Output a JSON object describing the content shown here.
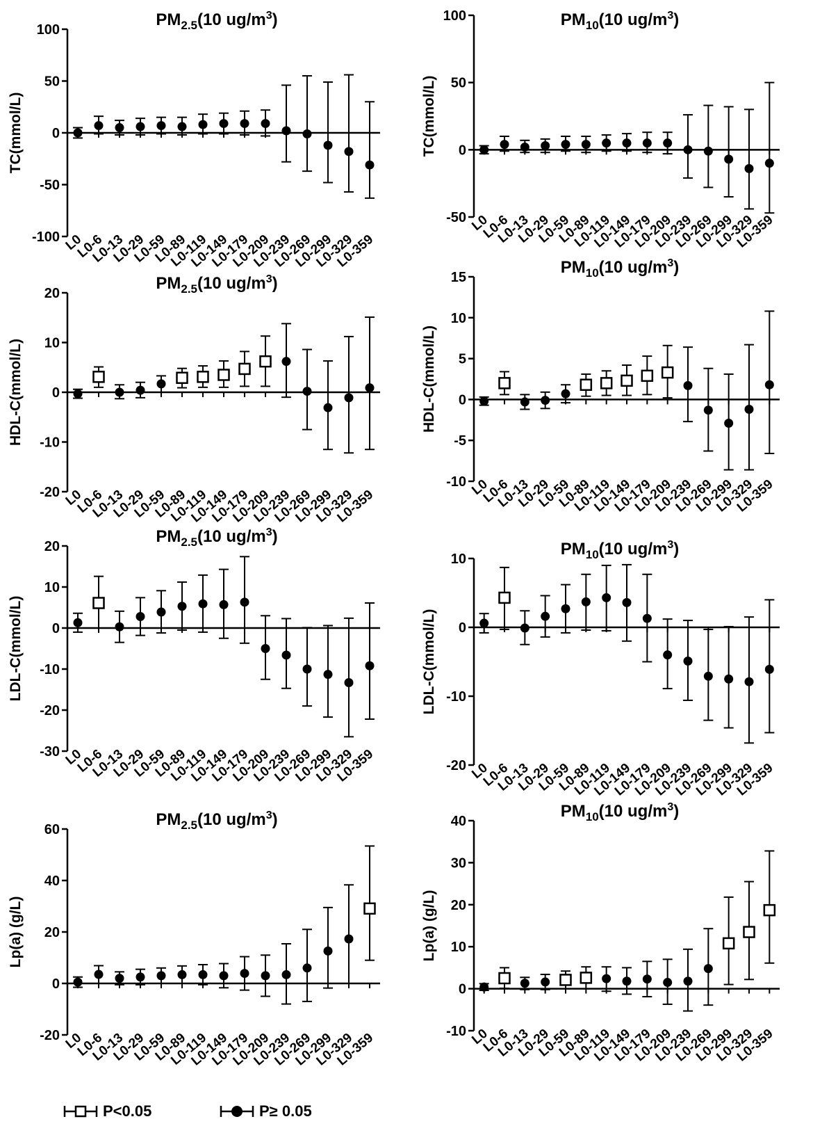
{
  "chart_data": [
    {
      "type": "errorbar",
      "title": {
        "base": "PM",
        "sub": "2.5",
        "tail": "(10 ug/m",
        "sup": "3",
        "end": ")"
      },
      "ylabel": "TC(mmol/L)",
      "ylim": [
        -100,
        100
      ],
      "yticks": [
        -100,
        -50,
        0,
        50,
        100
      ],
      "categories": [
        "L0",
        "L0-6",
        "L0-13",
        "L0-29",
        "L0-59",
        "L0-89",
        "L0-119",
        "L0-149",
        "L0-179",
        "L0-209",
        "L0-239",
        "L0-269",
        "L0-299",
        "L0-329",
        "L0-359"
      ],
      "estimate": [
        0,
        7,
        5,
        6,
        7,
        6,
        8,
        9,
        9,
        9,
        2,
        -1,
        -12,
        -18,
        -31
      ],
      "lower": [
        -5,
        -1,
        -2,
        -2,
        -1,
        -2,
        -1,
        -1,
        -2,
        -3,
        -28,
        -37,
        -48,
        -57,
        -63
      ],
      "upper": [
        5,
        16,
        12,
        14,
        15,
        15,
        18,
        19,
        21,
        22,
        46,
        55,
        49,
        56,
        30
      ],
      "significant": [
        false,
        false,
        false,
        false,
        false,
        false,
        false,
        false,
        false,
        false,
        false,
        false,
        false,
        false,
        false
      ]
    },
    {
      "type": "errorbar",
      "title": {
        "base": "PM",
        "sub": "10",
        "tail": "(10 ug/m",
        "sup": "3",
        "end": ")"
      },
      "ylabel": "TC(mmol/L)",
      "ylim": [
        -50,
        100
      ],
      "yticks": [
        -50,
        0,
        50,
        100
      ],
      "categories": [
        "L0",
        "L0-6",
        "L0-13",
        "L0-29",
        "L0-59",
        "L0-89",
        "L0-119",
        "L0-149",
        "L0-179",
        "L0-209",
        "L0-239",
        "L0-269",
        "L0-299",
        "L0-329",
        "L0-359"
      ],
      "estimate": [
        0,
        4,
        2,
        3,
        4,
        4,
        5,
        5,
        5,
        5,
        0,
        -1,
        -7,
        -14,
        -10
      ],
      "lower": [
        -3,
        -1,
        -2,
        -2,
        -1,
        -2,
        -1,
        -1,
        -2,
        -3,
        -21,
        -28,
        -35,
        -44,
        -47
      ],
      "upper": [
        3,
        10,
        7,
        8,
        10,
        10,
        11,
        12,
        13,
        13,
        26,
        33,
        32,
        30,
        50
      ],
      "significant": [
        false,
        false,
        false,
        false,
        false,
        false,
        false,
        false,
        false,
        false,
        false,
        false,
        false,
        false,
        false
      ]
    },
    {
      "type": "errorbar",
      "title": {
        "base": "PM",
        "sub": "2.5",
        "tail": "(10 ug/m",
        "sup": "3",
        "end": ")"
      },
      "ylabel": "HDL-C(mmol/L)",
      "ylim": [
        -20,
        20
      ],
      "yticks": [
        -20,
        -10,
        0,
        10,
        20
      ],
      "categories": [
        "L0",
        "L0-6",
        "L0-13",
        "L0-29",
        "L0-59",
        "L0-89",
        "L0-119",
        "L0-149",
        "L0-179",
        "L0-209",
        "L0-239",
        "L0-269",
        "L0-299",
        "L0-329",
        "L0-359"
      ],
      "estimate": [
        -0.3,
        3.1,
        0,
        0.4,
        1.7,
        2.9,
        3.1,
        3.5,
        4.7,
        6.2,
        6.2,
        0.2,
        -3.1,
        -1.1,
        0.9
      ],
      "lower": [
        -1.2,
        1,
        -1.3,
        -1.1,
        0,
        0.9,
        1,
        1,
        1.2,
        1.2,
        -1,
        -7.5,
        -11.5,
        -12.2,
        -11.5
      ],
      "upper": [
        0.6,
        5.1,
        1.5,
        2,
        3.3,
        4.8,
        5.3,
        6.3,
        8.2,
        11.3,
        13.8,
        8.6,
        6.3,
        11.2,
        15.1
      ],
      "significant": [
        false,
        true,
        false,
        false,
        false,
        true,
        true,
        true,
        true,
        true,
        false,
        false,
        false,
        false,
        false
      ]
    },
    {
      "type": "errorbar",
      "title": {
        "base": "PM",
        "sub": "10",
        "tail": "(10 ug/m",
        "sup": "3",
        "end": ")"
      },
      "ylabel": "HDL-C(mmol/L)",
      "ylim": [
        -10,
        15
      ],
      "yticks": [
        -10,
        -5,
        0,
        5,
        10,
        15
      ],
      "categories": [
        "L0",
        "L0-6",
        "L0-13",
        "L0-29",
        "L0-59",
        "L0-89",
        "L0-119",
        "L0-149",
        "L0-179",
        "L0-209",
        "L0-239",
        "L0-269",
        "L0-299",
        "L0-329",
        "L0-359"
      ],
      "estimate": [
        -0.2,
        2,
        -0.3,
        -0.1,
        0.7,
        1.8,
        2,
        2.3,
        2.9,
        3.3,
        1.7,
        -1.3,
        -2.9,
        -1.2,
        1.8
      ],
      "lower": [
        -0.7,
        0.6,
        -1.2,
        -1.1,
        -0.4,
        0.4,
        0.5,
        0.5,
        0.6,
        0.2,
        -2.7,
        -6.3,
        -8.6,
        -8.6,
        -6.6
      ],
      "upper": [
        0.3,
        3.4,
        0.6,
        0.9,
        1.8,
        3.1,
        3.5,
        4.2,
        5.3,
        6.6,
        6.4,
        3.8,
        3.1,
        6.7,
        10.8
      ],
      "significant": [
        false,
        true,
        false,
        false,
        false,
        true,
        true,
        true,
        true,
        true,
        false,
        false,
        false,
        false,
        false
      ]
    },
    {
      "type": "errorbar",
      "title": {
        "base": "PM",
        "sub": "2.5",
        "tail": "(10 ug/m",
        "sup": "3",
        "end": ")"
      },
      "ylabel": "LDL-C(mmol/L)",
      "ylim": [
        -30,
        20
      ],
      "yticks": [
        -30,
        -20,
        -10,
        0,
        10,
        20
      ],
      "categories": [
        "L0",
        "L0-6",
        "L0-13",
        "L0-29",
        "L0-59",
        "L0-89",
        "L0-119",
        "L0-149",
        "L0-179",
        "L0-209",
        "L0-239",
        "L0-269",
        "L0-299",
        "L0-329",
        "L0-359"
      ],
      "estimate": [
        1.3,
        6.1,
        0.3,
        2.8,
        3.9,
        5.3,
        5.9,
        5.7,
        6.3,
        -5,
        -6.6,
        -10,
        -11.3,
        -13.3,
        -9.2
      ],
      "lower": [
        -1,
        0,
        -3.5,
        -1.8,
        -1.2,
        -0.5,
        -1,
        -2.5,
        -3.7,
        -12.5,
        -14.7,
        -19,
        -21.7,
        -26.5,
        -22.2
      ],
      "upper": [
        3.6,
        12.6,
        4.1,
        7.4,
        9.1,
        11.2,
        12.9,
        14.3,
        17.4,
        3,
        2.3,
        0.1,
        0.6,
        2.4,
        6.1
      ],
      "significant": [
        false,
        true,
        false,
        false,
        false,
        false,
        false,
        false,
        false,
        false,
        false,
        false,
        false,
        false,
        false
      ]
    },
    {
      "type": "errorbar",
      "title": {
        "base": "PM",
        "sub": "10",
        "tail": "(10 ug/m",
        "sup": "3",
        "end": ")"
      },
      "ylabel": "LDL-C(mmol/L)",
      "ylim": [
        -20,
        10
      ],
      "yticks": [
        -20,
        -10,
        0,
        10
      ],
      "categories": [
        "L0",
        "L0-6",
        "L0-13",
        "L0-29",
        "L0-59",
        "L0-89",
        "L0-119",
        "L0-149",
        "L0-179",
        "L0-209",
        "L0-239",
        "L0-269",
        "L0-299",
        "L0-329",
        "L0-359"
      ],
      "estimate": [
        0.6,
        4.3,
        -0.1,
        1.6,
        2.7,
        3.7,
        4.3,
        3.6,
        1.3,
        -4,
        -4.9,
        -7.1,
        -7.5,
        -7.9,
        -6.1
      ],
      "lower": [
        -0.8,
        -0.3,
        -2.5,
        -1.4,
        -0.8,
        -0.4,
        -0.5,
        -2,
        -5,
        -8.9,
        -10.6,
        -13.5,
        -14.6,
        -16.8,
        -15.3
      ],
      "upper": [
        2,
        8.7,
        2.4,
        4.6,
        6.2,
        7.7,
        9,
        9.1,
        7.7,
        1.2,
        1,
        -0.3,
        0.1,
        1.5,
        4
      ],
      "significant": [
        false,
        true,
        false,
        false,
        false,
        false,
        false,
        false,
        false,
        false,
        false,
        false,
        false,
        false,
        false
      ]
    },
    {
      "type": "errorbar",
      "title": {
        "base": "PM",
        "sub": "2.5",
        "tail": "(10 ug/m",
        "sup": "3",
        "end": ")"
      },
      "ylabel": "Lp(a) (g/L)",
      "ylim": [
        -20,
        60
      ],
      "yticks": [
        -20,
        0,
        20,
        40,
        60
      ],
      "categories": [
        "L0",
        "L0-6",
        "L0-13",
        "L0-29",
        "L0-59",
        "L0-89",
        "L0-119",
        "L0-149",
        "L0-179",
        "L0-209",
        "L0-239",
        "L0-269",
        "L0-299",
        "L0-329",
        "L0-359"
      ],
      "estimate": [
        0.5,
        3.5,
        2,
        2.5,
        3,
        3.4,
        3.4,
        3,
        3.9,
        3,
        3.4,
        6,
        12.6,
        17.3,
        29.1
      ],
      "lower": [
        -1.5,
        0,
        -0.5,
        -0.5,
        0,
        0,
        -0.5,
        -1.7,
        -2.6,
        -5,
        -8,
        -7,
        -1.8,
        0,
        9
      ],
      "upper": [
        2.5,
        6.9,
        4.5,
        5.5,
        6,
        6.8,
        7.3,
        7.7,
        10.4,
        11,
        15.4,
        21,
        29.5,
        38.3,
        53.4
      ],
      "significant": [
        false,
        false,
        false,
        false,
        false,
        false,
        false,
        false,
        false,
        false,
        false,
        false,
        false,
        false,
        true
      ]
    },
    {
      "type": "errorbar",
      "title": {
        "base": "PM",
        "sub": "10",
        "tail": "(10 ug/m",
        "sup": "3",
        "end": ")"
      },
      "ylabel": "Lp(a) (g/L)",
      "ylim": [
        -10,
        40
      ],
      "yticks": [
        -10,
        0,
        10,
        20,
        30,
        40
      ],
      "categories": [
        "L0",
        "L0-6",
        "L0-13",
        "L0-29",
        "L0-59",
        "L0-89",
        "L0-119",
        "L0-149",
        "L0-179",
        "L0-209",
        "L0-239",
        "L0-269",
        "L0-299",
        "L0-329",
        "L0-359"
      ],
      "estimate": [
        0.4,
        2.5,
        1.3,
        1.6,
        2.1,
        2.6,
        2.4,
        1.8,
        2.3,
        1.5,
        1.8,
        4.8,
        10.8,
        13.5,
        18.7
      ],
      "lower": [
        -0.4,
        0.1,
        -0.2,
        -0.2,
        0,
        0,
        -0.6,
        -1.3,
        -1.9,
        -3.7,
        -5.3,
        -3.9,
        1,
        2.2,
        6.1
      ],
      "upper": [
        1.2,
        5,
        2.7,
        3.4,
        4.2,
        5.2,
        5.2,
        5,
        6.5,
        7,
        9.4,
        14.3,
        21.8,
        25.5,
        32.8
      ],
      "significant": [
        false,
        true,
        false,
        false,
        true,
        true,
        false,
        false,
        false,
        false,
        false,
        false,
        true,
        true,
        true
      ]
    }
  ],
  "legend": {
    "significant_label": "P<0.05",
    "nonsignificant_label": "P≥ 0.05"
  }
}
